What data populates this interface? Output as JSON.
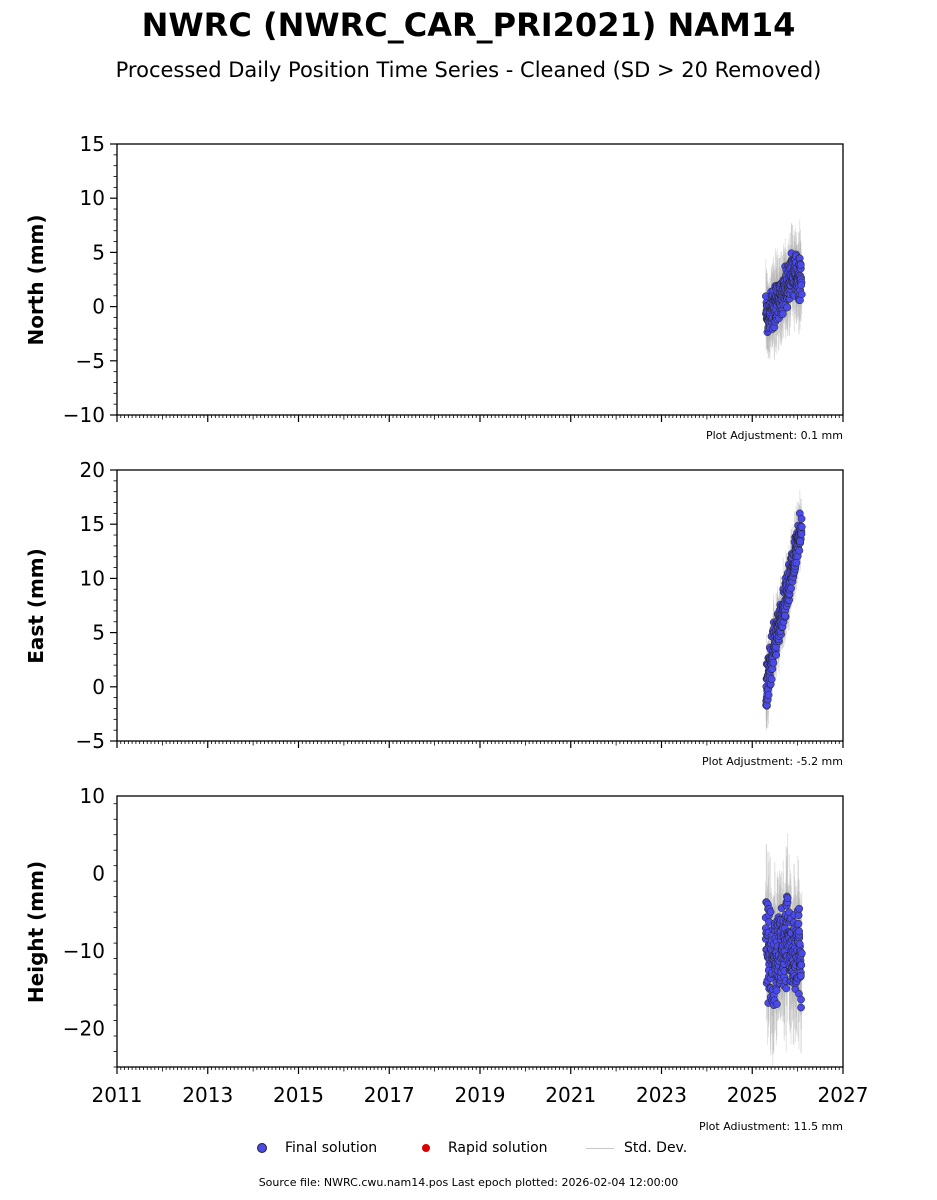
{
  "title": "NWRC (NWRC_CAR_PRI2021) NAM14",
  "subtitle": "Processed Daily Position Time Series - Cleaned (SD > 20 Removed)",
  "legend": {
    "final_label": "Final solution",
    "rapid_label": "Rapid solution",
    "stddev_label": "Std. Dev."
  },
  "footer": "Source file: NWRC.cwu.nam14.pos  Last epoch plotted: 2026-02-04 12:00:00",
  "colors": {
    "final": "#4a4ae8",
    "final_edge": "#222222",
    "rapid": "#dd0000",
    "stddev": "#b4b4b4"
  },
  "chart_data": [
    {
      "type": "scatter",
      "ylabel": "North (mm)",
      "xlim": [
        2011,
        2027
      ],
      "ylim": [
        -10,
        15
      ],
      "x_ticks": [
        "2011",
        "2013",
        "2015",
        "2017",
        "2019",
        "2021",
        "2023",
        "2025",
        "2027"
      ],
      "y_ticks": [
        "−10",
        "−5",
        "0",
        "5",
        "10",
        "15"
      ],
      "show_x_tick_labels": false,
      "adjustment": "Plot Adjustment: 0.1 mm",
      "series": [
        {
          "type": "final",
          "x": [
            2025.3,
            2025.38,
            2025.46,
            2025.54,
            2025.62,
            2025.7,
            2025.78,
            2025.86,
            2025.94,
            2026.02,
            2026.09
          ],
          "y": [
            -0.5,
            -1.0,
            0.0,
            0.5,
            0.8,
            1.5,
            2.0,
            2.5,
            3.0,
            3.0,
            2.5
          ],
          "spread": [
            1.8,
            1.8,
            1.8,
            1.6,
            1.6,
            1.6,
            1.7,
            1.8,
            1.8,
            1.8,
            1.6
          ],
          "stddev": 3.0
        }
      ]
    },
    {
      "type": "scatter",
      "ylabel": "East (mm)",
      "xlim": [
        2011,
        2027
      ],
      "ylim": [
        -5,
        20
      ],
      "x_ticks": [
        "2011",
        "2013",
        "2015",
        "2017",
        "2019",
        "2021",
        "2023",
        "2025",
        "2027"
      ],
      "y_ticks": [
        "−5",
        "0",
        "5",
        "10",
        "15",
        "20"
      ],
      "show_x_tick_labels": false,
      "adjustment": "Plot Adjustment: -5.2 mm",
      "series": [
        {
          "type": "final",
          "x": [
            2025.3,
            2025.38,
            2025.46,
            2025.54,
            2025.62,
            2025.7,
            2025.78,
            2025.86,
            2025.94,
            2026.02,
            2026.09
          ],
          "y": [
            -0.5,
            1.5,
            3.5,
            5.0,
            6.0,
            7.5,
            9.0,
            10.5,
            12.0,
            13.5,
            15.0
          ],
          "spread": [
            1.6,
            1.6,
            1.6,
            1.5,
            1.5,
            1.5,
            1.5,
            1.5,
            1.5,
            1.5,
            1.5
          ],
          "stddev": 2.5
        }
      ]
    },
    {
      "type": "scatter",
      "ylabel": "Height (mm)",
      "xlim": [
        2011,
        2027
      ],
      "ylim": [
        -25,
        10
      ],
      "x_ticks": [
        "2011",
        "2013",
        "2015",
        "2017",
        "2019",
        "2021",
        "2023",
        "2025",
        "2027"
      ],
      "y_ticks": [
        "−20",
        "−10",
        "0",
        "10"
      ],
      "show_x_tick_labels": true,
      "adjustment": "Plot Adjustment: 11.5 mm",
      "series": [
        {
          "type": "final",
          "x": [
            2025.3,
            2025.38,
            2025.46,
            2025.54,
            2025.62,
            2025.7,
            2025.78,
            2025.86,
            2025.94,
            2026.02,
            2026.09
          ],
          "y": [
            -8.0,
            -11.0,
            -13.0,
            -12.0,
            -11.0,
            -10.0,
            -9.0,
            -10.0,
            -11.0,
            -9.5,
            -12.0
          ],
          "spread": [
            6.0,
            6.0,
            5.5,
            5.5,
            5.0,
            5.0,
            5.0,
            5.0,
            5.0,
            5.0,
            5.5
          ],
          "stddev": 7.0
        }
      ]
    }
  ]
}
